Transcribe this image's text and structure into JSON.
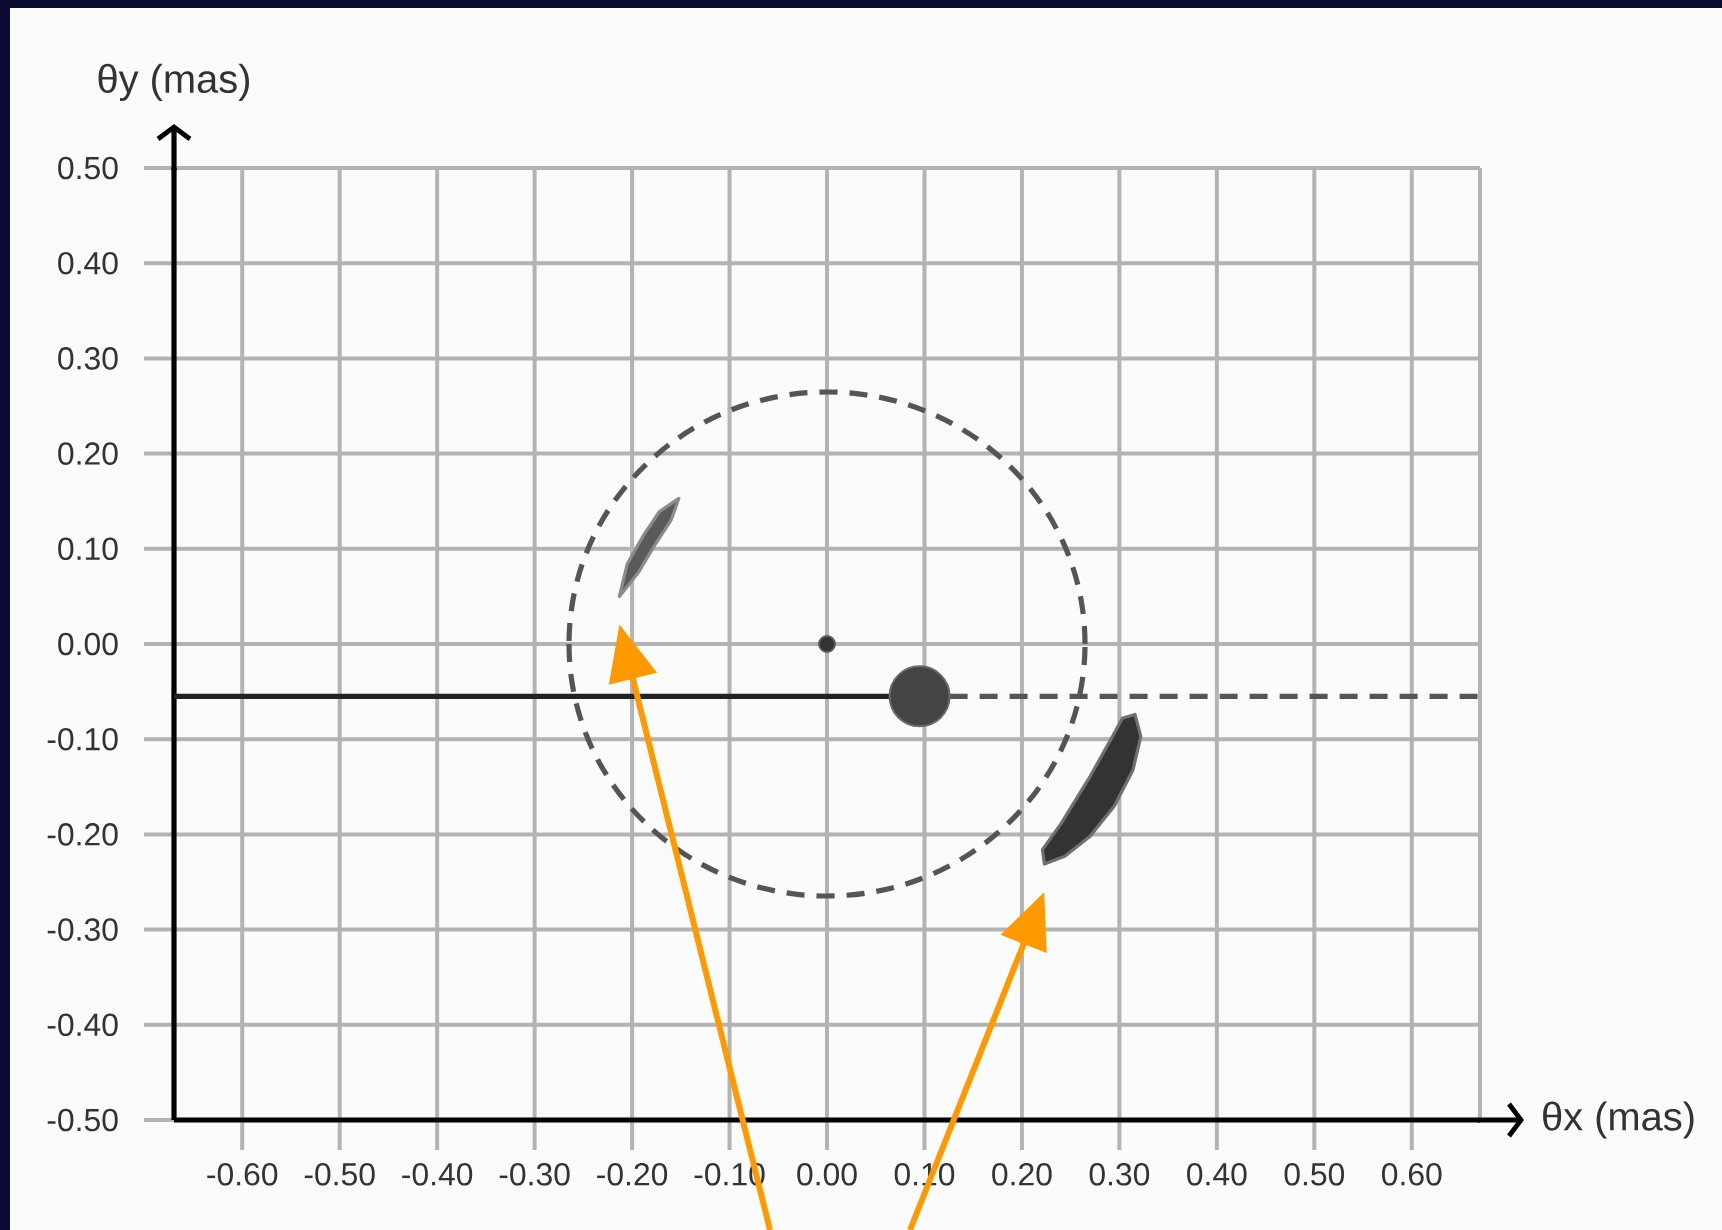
{
  "chart_data": {
    "type": "line",
    "xlabel": "θx (mas)",
    "ylabel": "θy (mas)",
    "xlim": [
      -0.67,
      0.67
    ],
    "ylim": [
      -0.5,
      0.5
    ],
    "xticks": [
      {
        "value": -0.6,
        "label": "-0.60"
      },
      {
        "value": -0.5,
        "label": "-0.50"
      },
      {
        "value": -0.4,
        "label": "-0.40"
      },
      {
        "value": -0.3,
        "label": "-0.30"
      },
      {
        "value": -0.2,
        "label": "-0.20"
      },
      {
        "value": -0.1,
        "label": "-0.10"
      },
      {
        "value": 0,
        "label": "0.00"
      },
      {
        "value": 0.1,
        "label": "0.10"
      },
      {
        "value": 0.2,
        "label": "0.20"
      },
      {
        "value": 0.3,
        "label": "0.30"
      },
      {
        "value": 0.4,
        "label": "0.40"
      },
      {
        "value": 0.5,
        "label": "0.50"
      },
      {
        "value": 0.6,
        "label": "0.60"
      }
    ],
    "yticks": [
      {
        "value": -0.5,
        "label": "-0.50"
      },
      {
        "value": -0.4,
        "label": "-0.40"
      },
      {
        "value": -0.3,
        "label": "-0.30"
      },
      {
        "value": -0.2,
        "label": "-0.20"
      },
      {
        "value": -0.1,
        "label": "-0.10"
      },
      {
        "value": 0,
        "label": "0.00"
      },
      {
        "value": 0.1,
        "label": "0.10"
      },
      {
        "value": 0.2,
        "label": "0.20"
      },
      {
        "value": 0.3,
        "label": "0.30"
      },
      {
        "value": 0.4,
        "label": "0.40"
      },
      {
        "value": 0.5,
        "label": "0.50"
      }
    ],
    "grid": true,
    "series": [
      {
        "line_style": "solid",
        "color": "#222222",
        "x": [
          -0.67,
          0.095
        ],
        "values": [
          -0.055,
          -0.055
        ]
      },
      {
        "line_style": "dashed",
        "color": "#555555",
        "x": [
          0.095,
          0.67
        ],
        "values": [
          -0.055,
          -0.055
        ]
      },
      {
        "type": "area",
        "color": "#5a5a5a",
        "x": [
          -0.213,
          -0.205,
          -0.189,
          -0.172,
          -0.152,
          -0.16,
          -0.176,
          -0.193
        ],
        "values": [
          0.05,
          0.084,
          0.113,
          0.139,
          0.153,
          0.13,
          0.105,
          0.076
        ]
      },
      {
        "type": "area",
        "color": "#333333",
        "x": [
          0.316,
          0.322,
          0.314,
          0.295,
          0.27,
          0.244,
          0.223,
          0.221,
          0.24,
          0.27,
          0.293,
          0.303
        ],
        "values": [
          -0.074,
          -0.097,
          -0.132,
          -0.17,
          -0.202,
          -0.223,
          -0.231,
          -0.216,
          -0.189,
          -0.139,
          -0.097,
          -0.078
        ]
      },
      {
        "type": "bubble",
        "x": [
          0,
          0.095
        ],
        "values": [
          0,
          -0.055
        ],
        "sizes": [
          0.07,
          1
        ],
        "colors": [
          "#333333",
          "#444444"
        ]
      }
    ]
  }
}
